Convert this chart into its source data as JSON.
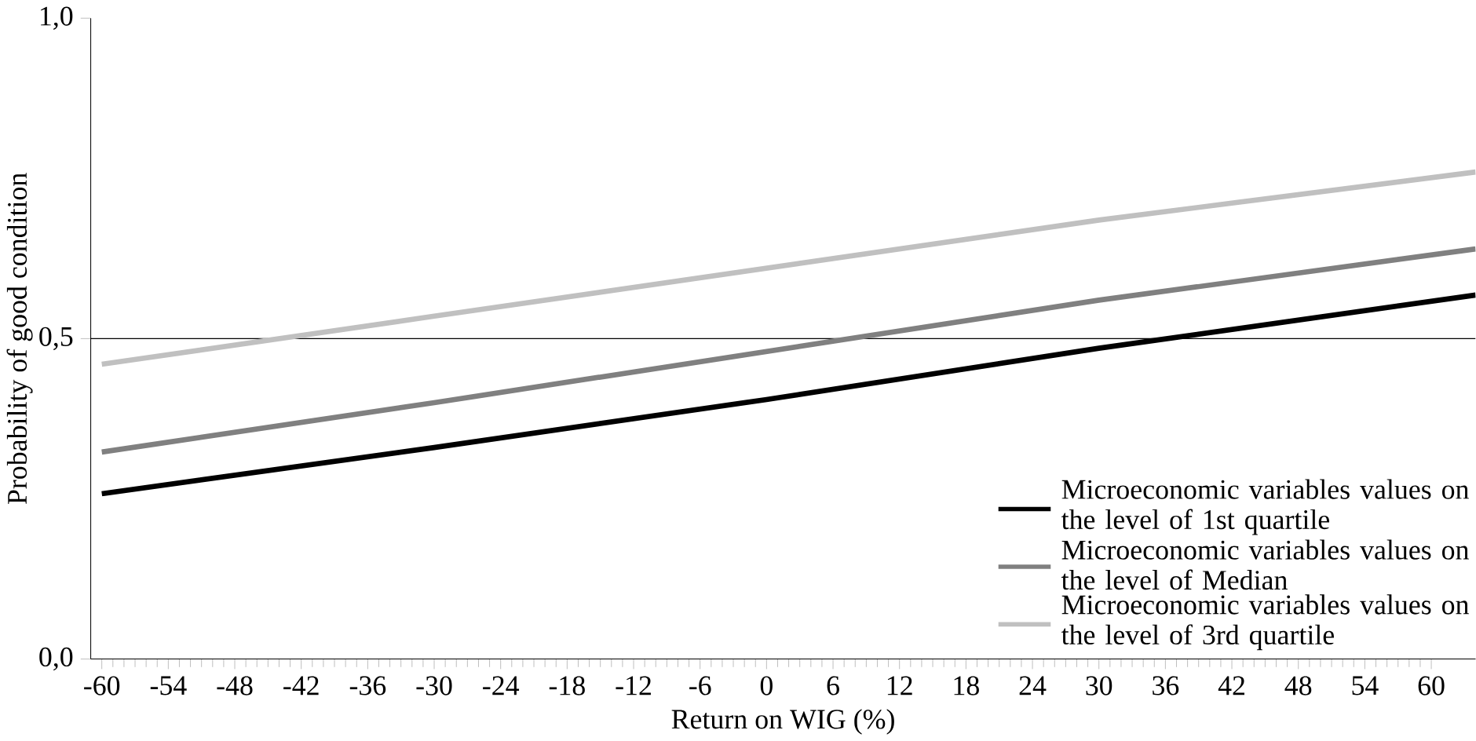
{
  "chart_data": {
    "type": "line",
    "xlabel": "Return on WIG (%)",
    "ylabel": "Probability of good condition",
    "x": [
      -60,
      -30,
      0,
      30,
      64
    ],
    "series": [
      {
        "name": "Microeconomic variables values on the level of 1st quartile",
        "color": "#000000",
        "values": [
          0.258,
          0.33,
          0.405,
          0.485,
          0.568
        ]
      },
      {
        "name": "Microeconomic variables values on the level of Median",
        "color": "#808080",
        "values": [
          0.323,
          0.4,
          0.48,
          0.56,
          0.64
        ]
      },
      {
        "name": "Microeconomic variables values on the level of 3rd quartile",
        "color": "#c0c0c0",
        "values": [
          0.46,
          0.535,
          0.61,
          0.685,
          0.76
        ]
      }
    ],
    "xlim": [
      -61,
      64
    ],
    "ylim": [
      0,
      1
    ],
    "xticks": [
      -60,
      -54,
      -48,
      -42,
      -36,
      -30,
      -24,
      -18,
      -12,
      -6,
      0,
      6,
      12,
      18,
      24,
      30,
      36,
      42,
      48,
      54,
      60
    ],
    "yticks": [
      {
        "value": 0,
        "label": "0,0"
      },
      {
        "value": 0.5,
        "label": "0,5"
      },
      {
        "value": 1,
        "label": "1,0"
      }
    ],
    "ref_lines": [
      {
        "axis": "y",
        "value": 0.5,
        "color": "#000000"
      }
    ],
    "legend": "bottom right",
    "marker": "none",
    "line_style": "solid"
  }
}
